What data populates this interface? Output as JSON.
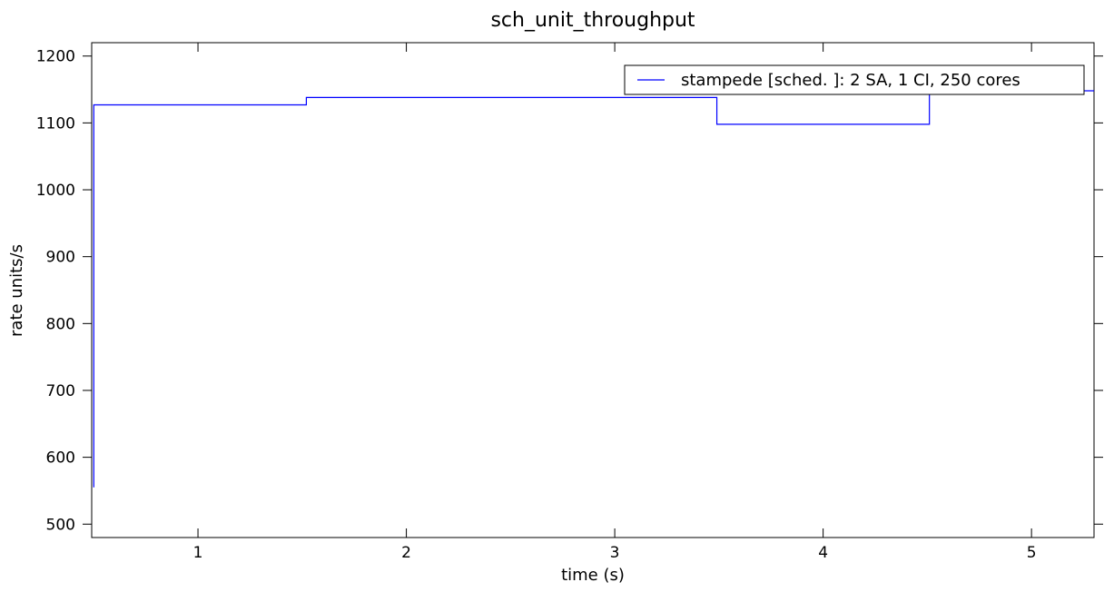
{
  "chart_data": {
    "type": "line",
    "title": "sch_unit_throughput",
    "xlabel": "time (s)",
    "ylabel": "rate units/s",
    "xlim": [
      0.49,
      5.3
    ],
    "ylim": [
      480,
      1220
    ],
    "xticks": [
      1,
      2,
      3,
      4,
      5
    ],
    "xtick_labels": [
      "1",
      "2",
      "3",
      "4",
      "5"
    ],
    "yticks": [
      500,
      600,
      700,
      800,
      900,
      1000,
      1100,
      1200
    ],
    "ytick_labels": [
      "500",
      "600",
      "700",
      "800",
      "900",
      "1000",
      "1100",
      "1200"
    ],
    "grid": false,
    "legend_position": "top-right",
    "step": "post",
    "series": [
      {
        "name": "stampede [sched. ]:   2 SA,   1 CI,  250 cores",
        "color": "#0000ff",
        "x": [
          0.5,
          0.5,
          1.52,
          3.49,
          4.51,
          5.3
        ],
        "y": [
          555,
          1127,
          1138,
          1098,
          1148,
          1148
        ]
      }
    ]
  }
}
